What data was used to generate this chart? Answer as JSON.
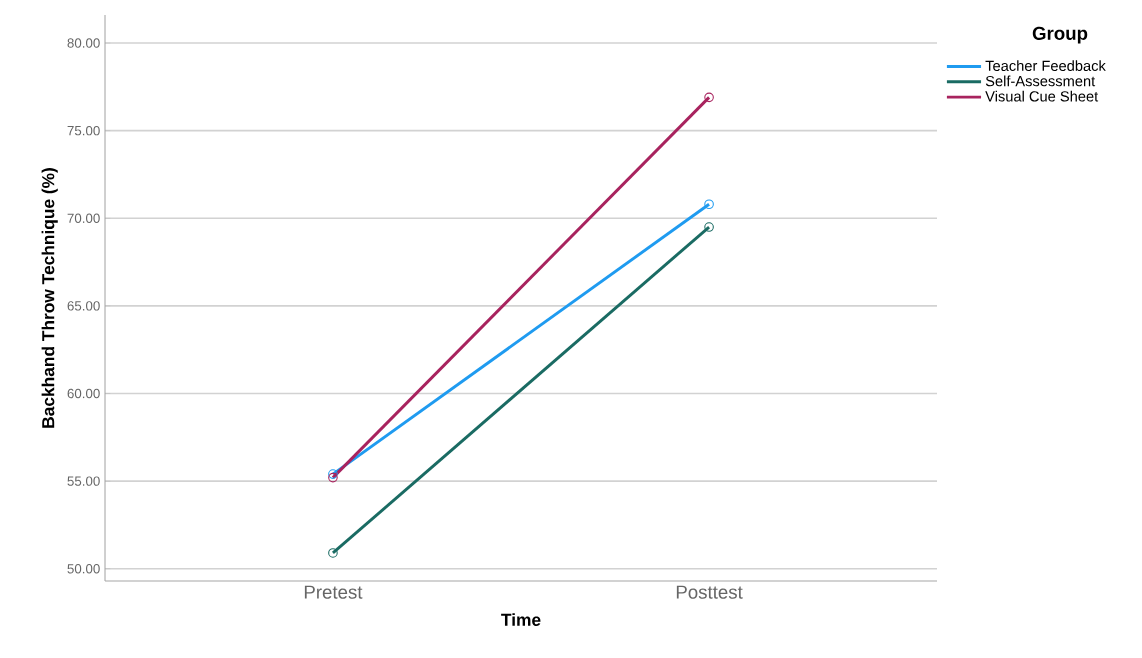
{
  "chart_data": {
    "type": "line",
    "xlabel": "Time",
    "ylabel": "Backhand Throw Technique (%)",
    "legend_title": "Group",
    "categories": [
      "Pretest",
      "Posttest"
    ],
    "series": [
      {
        "name": "Teacher Feedback",
        "color": "#1f9bf0",
        "values": [
          55.4,
          70.8
        ]
      },
      {
        "name": "Self-Assessment",
        "color": "#1a6b63",
        "values": [
          50.9,
          69.5
        ]
      },
      {
        "name": "Visual Cue Sheet",
        "color": "#a8235e",
        "values": [
          55.2,
          76.9
        ]
      }
    ],
    "ylim": [
      49.3,
      81.6
    ],
    "yticks": [
      {
        "value": 50,
        "label": "50.00"
      },
      {
        "value": 55,
        "label": "55.00"
      },
      {
        "value": 60,
        "label": "60.00"
      },
      {
        "value": 65,
        "label": "65.00"
      },
      {
        "value": 70,
        "label": "70.00"
      },
      {
        "value": 75,
        "label": "75.00"
      },
      {
        "value": 80,
        "label": "80.00"
      }
    ],
    "grid": "y",
    "legend": "top right",
    "marker": "circle",
    "line_style": "solid"
  }
}
